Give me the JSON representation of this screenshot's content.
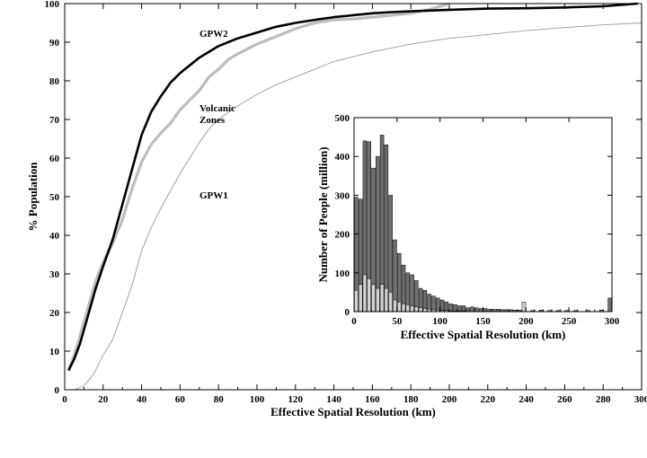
{
  "colors": {
    "gpw2": "#000000",
    "volcanic": "#bdbdbd",
    "gpw1": "#9a9a9a",
    "hist_dark": "#6f6f6f",
    "hist_light": "#d2d2d2"
  },
  "chart_data": [
    {
      "type": "line",
      "xlabel": "Effective Spatial Resolution (km)",
      "ylabel": "% Population",
      "xlim": [
        0,
        300
      ],
      "ylim": [
        0,
        100
      ],
      "x_ticks": [
        "0",
        "20",
        "40",
        "60",
        "80",
        "100",
        "120",
        "140",
        "160",
        "180",
        "200",
        "220",
        "240",
        "260",
        "280",
        "300"
      ],
      "y_ticks": [
        "0",
        "10",
        "20",
        "30",
        "40",
        "50",
        "60",
        "70",
        "80",
        "90",
        "100"
      ],
      "annotations": [
        {
          "text": "GPW2",
          "series": "GPW2"
        },
        {
          "text": "Volcanic",
          "series": "Volcanic Zones"
        },
        {
          "text": "Zones",
          "series": "Volcanic Zones"
        },
        {
          "text": "GPW1",
          "series": "GPW1"
        }
      ],
      "series": [
        {
          "name": "GPW2",
          "color": "#000000",
          "x": [
            2,
            5,
            8,
            12,
            16,
            20,
            25,
            30,
            35,
            40,
            45,
            50,
            55,
            60,
            70,
            80,
            90,
            100,
            110,
            120,
            130,
            140,
            150,
            160,
            170,
            180,
            200,
            220,
            240,
            260,
            280,
            298
          ],
          "y": [
            5,
            8,
            12,
            19,
            26,
            32,
            39,
            48,
            57,
            66,
            72,
            76,
            79.5,
            82,
            86,
            89,
            91,
            92.5,
            94,
            95,
            95.8,
            96.5,
            97,
            97.5,
            97.8,
            98,
            98.4,
            98.7,
            98.8,
            99,
            99.3,
            100
          ]
        },
        {
          "name": "Volcanic Zones",
          "color": "#bdbdbd",
          "x": [
            2,
            5,
            8,
            12,
            16,
            20,
            25,
            30,
            35,
            40,
            45,
            50,
            55,
            60,
            65,
            70,
            75,
            80,
            85,
            90,
            100,
            110,
            120,
            130,
            140,
            150,
            160,
            170,
            180,
            190,
            200
          ],
          "y": [
            5,
            9,
            14,
            21,
            28,
            33,
            38,
            44,
            52,
            59,
            63.5,
            66.5,
            69,
            72.5,
            75,
            77.5,
            81,
            83,
            85.5,
            87,
            89.5,
            91.5,
            93.5,
            95,
            95.8,
            96,
            96.5,
            97,
            97.5,
            98.5,
            100
          ]
        },
        {
          "name": "GPW1",
          "color": "#9a9a9a",
          "x": [
            5,
            10,
            15,
            20,
            25,
            30,
            35,
            40,
            45,
            50,
            55,
            60,
            65,
            70,
            75,
            80,
            90,
            100,
            110,
            120,
            140,
            160,
            180,
            200,
            220,
            240,
            260,
            280,
            300
          ],
          "y": [
            0,
            1,
            4,
            9,
            13,
            20,
            27,
            36,
            42,
            47,
            51.5,
            56,
            60,
            64,
            67.5,
            70,
            73.5,
            76.5,
            79,
            81,
            85,
            87.5,
            89.5,
            91,
            92,
            93,
            93.8,
            94.5,
            95
          ]
        }
      ]
    },
    {
      "type": "bar",
      "xlabel": "Effective Spatial Resolution (km)",
      "ylabel": "Number of People (million)",
      "xlim": [
        0,
        300
      ],
      "ylim": [
        0,
        500
      ],
      "x_ticks": [
        "0",
        "50",
        "100",
        "150",
        "200",
        "250",
        "300"
      ],
      "y_ticks": [
        "0",
        "100",
        "200",
        "300",
        "400",
        "500"
      ],
      "bin_width": 5,
      "series": [
        {
          "name": "GPW2",
          "color": "#6f6f6f",
          "x": [
            2.5,
            7.5,
            12.5,
            17.5,
            22.5,
            27.5,
            32.5,
            37.5,
            42.5,
            47.5,
            52.5,
            57.5,
            62.5,
            67.5,
            72.5,
            77.5,
            82.5,
            87.5,
            92.5,
            97.5,
            102.5,
            107.5,
            112.5,
            117.5,
            122.5,
            127.5,
            132.5,
            137.5,
            142.5,
            147.5,
            152.5,
            157.5,
            162.5,
            167.5,
            172.5,
            177.5,
            182.5,
            187.5,
            192.5,
            197.5,
            207.5,
            217.5,
            227.5,
            237.5,
            247.5,
            257.5,
            272.5,
            287.5,
            297.5
          ],
          "values": [
            295,
            290,
            440,
            438,
            370,
            400,
            455,
            430,
            300,
            185,
            150,
            120,
            100,
            95,
            80,
            60,
            55,
            45,
            40,
            35,
            30,
            25,
            20,
            18,
            15,
            15,
            10,
            12,
            10,
            8,
            8,
            6,
            6,
            6,
            5,
            5,
            5,
            4,
            4,
            4,
            3,
            4,
            3,
            3,
            3,
            3,
            3,
            4,
            35
          ]
        },
        {
          "name": "Volcanic Zones",
          "color": "#d2d2d2",
          "x": [
            2.5,
            7.5,
            12.5,
            17.5,
            22.5,
            27.5,
            32.5,
            37.5,
            42.5,
            47.5,
            52.5,
            57.5,
            62.5,
            67.5,
            72.5,
            77.5,
            82.5,
            87.5,
            92.5,
            97.5,
            102.5,
            107.5,
            112.5,
            117.5,
            122.5,
            127.5,
            197.5
          ],
          "values": [
            55,
            70,
            95,
            85,
            70,
            60,
            70,
            60,
            50,
            30,
            25,
            20,
            18,
            15,
            12,
            10,
            8,
            6,
            5,
            4,
            3,
            3,
            2,
            2,
            2,
            2,
            25
          ]
        }
      ]
    }
  ]
}
